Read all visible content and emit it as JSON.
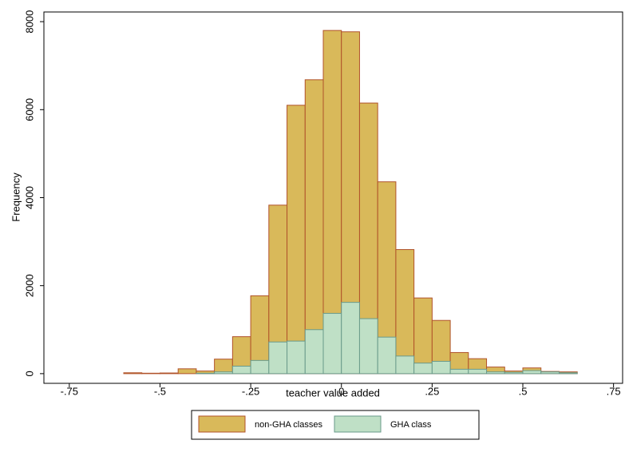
{
  "chart_data": {
    "type": "histogram",
    "x_label": "teacher value added",
    "y_label": "Frequency",
    "bins": [
      -0.6,
      -0.55,
      -0.5,
      -0.45,
      -0.4,
      -0.35,
      -0.3,
      -0.25,
      -0.2,
      -0.15,
      -0.1,
      -0.05,
      0,
      0.05,
      0.1,
      0.15,
      0.2,
      0.25,
      0.3,
      0.35,
      0.4,
      0.45,
      0.5,
      0.55,
      0.6,
      0.65
    ],
    "series": [
      {
        "name": "non-GHA classes",
        "color": "#d9b95a",
        "edge": "#b0522a",
        "values": [
          20,
          10,
          15,
          110,
          60,
          330,
          840,
          1770,
          3830,
          6100,
          6680,
          7800,
          7770,
          6150,
          4360,
          2820,
          1720,
          1210,
          480,
          340,
          150,
          60,
          130,
          50,
          40
        ]
      },
      {
        "name": "GHA class",
        "color": "#bfe0c6",
        "edge": "#6a9a8a",
        "values": [
          0,
          0,
          0,
          0,
          10,
          40,
          170,
          300,
          720,
          740,
          1000,
          1370,
          1620,
          1250,
          830,
          400,
          240,
          280,
          100,
          100,
          40,
          30,
          70,
          40,
          20
        ]
      }
    ],
    "xlim": [
      -0.82,
      0.775
    ],
    "ylim": [
      -220,
      8220
    ],
    "xticks": [
      {
        "value": -0.75,
        "label": "-.75"
      },
      {
        "value": -0.5,
        "label": "-.5"
      },
      {
        "value": -0.25,
        "label": "-.25"
      },
      0,
      {
        "value": 0.25,
        "label": ".25"
      },
      {
        "value": 0.5,
        "label": ".5"
      },
      {
        "value": 0.75,
        "label": ".75"
      }
    ],
    "yticks": [
      0,
      2000,
      4000,
      6000,
      8000
    ]
  }
}
